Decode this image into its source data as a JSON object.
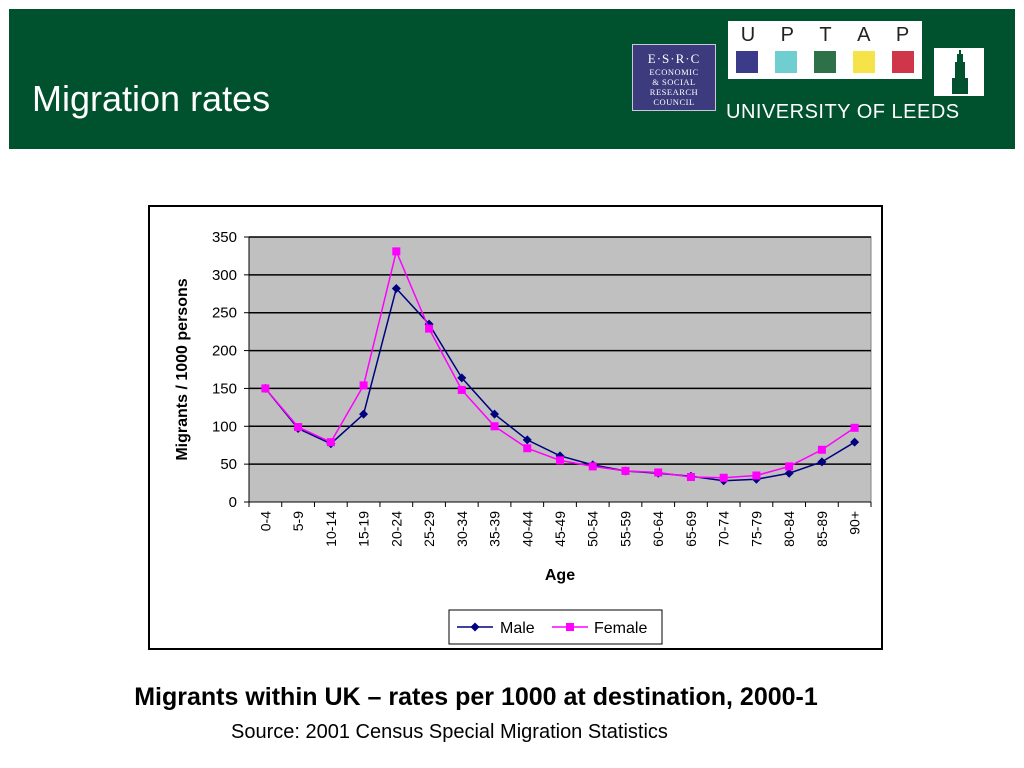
{
  "slide": {
    "title": "Migration rates",
    "caption": "Migrants within UK – rates per 1000 at destination, 2000-1",
    "source": "Source: 2001 Census Special Migration Statistics"
  },
  "logos": {
    "esrc": {
      "line1": "E·S·R·C",
      "line2": "ECONOMIC",
      "line3": "& SOCIAL",
      "line4": "RESEARCH",
      "line5": "COUNCIL"
    },
    "uptap": {
      "letters": [
        "U",
        "P",
        "T",
        "A",
        "P"
      ],
      "colors": [
        "#3b3b8a",
        "#6fcfd0",
        "#2e7048",
        "#f6e34a",
        "#d0364a"
      ]
    },
    "leeds": "UNIVERSITY OF LEEDS"
  },
  "colors": {
    "header_bg": "#00512e",
    "plot_bg": "#c0c0c0",
    "male": "#000080",
    "female": "#ff00ff"
  },
  "chart_data": {
    "type": "line",
    "categories": [
      "0-4",
      "5-9",
      "10-14",
      "15-19",
      "20-24",
      "25-29",
      "30-34",
      "35-39",
      "40-44",
      "45-49",
      "50-54",
      "55-59",
      "60-64",
      "65-69",
      "70-74",
      "75-79",
      "80-84",
      "85-89",
      "90+"
    ],
    "series": [
      {
        "name": "Male",
        "marker": "diamond",
        "values": [
          150,
          97,
          77,
          116,
          282,
          235,
          164,
          116,
          82,
          61,
          49,
          41,
          38,
          34,
          28,
          30,
          38,
          53,
          79
        ]
      },
      {
        "name": "Female",
        "marker": "square",
        "values": [
          150,
          99,
          79,
          154,
          331,
          229,
          148,
          100,
          71,
          55,
          47,
          41,
          39,
          33,
          32,
          35,
          47,
          69,
          98
        ]
      }
    ],
    "xlabel": "Age",
    "ylabel": "Migrants / 1000 persons",
    "ylim": [
      0,
      350
    ],
    "yticks": [
      0,
      50,
      100,
      150,
      200,
      250,
      300,
      350
    ],
    "grid": true,
    "legend": "bottom-right"
  }
}
